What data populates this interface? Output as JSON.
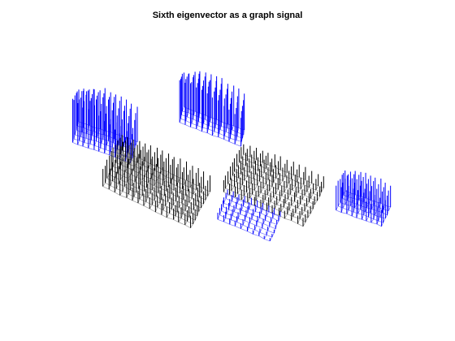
{
  "figure": {
    "title": "Sixth eigenvector as a graph signal"
  },
  "colors": {
    "background": "#ffffff",
    "graph_edges": "#8c8c8c",
    "stems_positive": "#000000",
    "stems_negative": "#0000ff"
  },
  "chart_data": {
    "type": "graph-signal-3d-stem",
    "title": "Sixth eigenvector as a graph signal",
    "xlabel": "",
    "ylabel": "",
    "zlabel": "",
    "axes_visible": false,
    "grid": false,
    "signal_name": "sixth eigenvector",
    "color_encoding": {
      "positive": "black",
      "negative": "blue"
    },
    "clusters": [
      {
        "name": "left-back",
        "rows": 6,
        "cols": 12,
        "sign": "negative",
        "amplitude_range": [
          0.45,
          0.9
        ]
      },
      {
        "name": "top-center",
        "rows": 5,
        "cols": 12,
        "sign": "negative",
        "amplitude_range": [
          0.6,
          1.0
        ]
      },
      {
        "name": "left-center",
        "rows": 10,
        "cols": 16,
        "sign": "positive",
        "amplitude_range": [
          0.3,
          0.55
        ]
      },
      {
        "name": "right-center",
        "rows": 10,
        "cols": 14,
        "sign": "positive",
        "amplitude_range": [
          0.25,
          0.45
        ]
      },
      {
        "name": "bottom-center",
        "rows": 7,
        "cols": 10,
        "sign": "negative",
        "amplitude_range": [
          0.15,
          0.35
        ]
      },
      {
        "name": "right-edge",
        "rows": 6,
        "cols": 10,
        "sign": "negative",
        "amplitude_range": [
          0.5,
          0.8
        ]
      }
    ]
  }
}
